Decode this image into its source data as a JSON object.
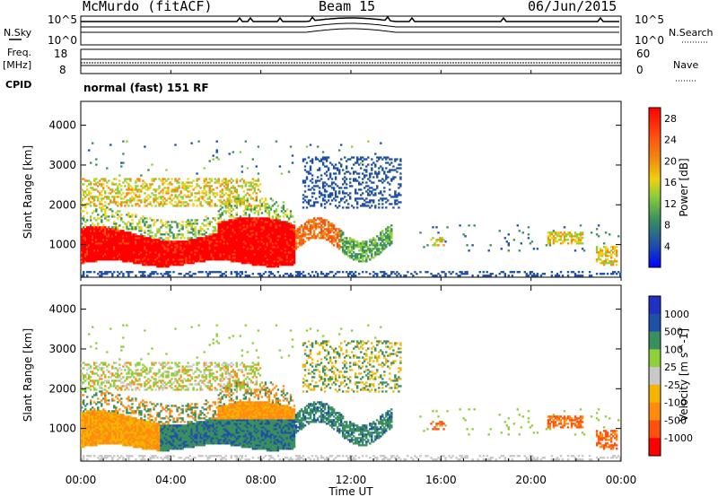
{
  "header": {
    "station": "McMurdo (fitACF)",
    "beam": "Beam 15",
    "date": "06/Jun/2015"
  },
  "side_labels": {
    "nsky": "N.Sky",
    "freq": "Freq.",
    "mhz": "[MHz]",
    "cpid": "CPID",
    "nsearch": "N.Search",
    "nave": "Nave"
  },
  "cpid_text": "normal (fast) 151 RF",
  "colors": {
    "power_scale": [
      "#0000ff",
      "#1f4fa8",
      "#3a8f5e",
      "#8fcf3a",
      "#f0d010",
      "#f08a10",
      "#ff5010",
      "#ff0000"
    ],
    "velocity_scale": [
      "#ff0000",
      "#ff5010",
      "#ff8c10",
      "#f4b400",
      "#c8c8c8",
      "#8fcf3a",
      "#3a8f5e",
      "#1f4fa8",
      "#2030c0"
    ]
  },
  "chart_data": [
    {
      "type": "line",
      "panel": "noise",
      "left_label": "N.Sky",
      "right_label": "N.Search",
      "left_ticks": [
        "10^5",
        "10^0"
      ],
      "right_ticks": [
        "10^5",
        "10^0"
      ]
    },
    {
      "type": "line",
      "panel": "frequency",
      "left_label": "Freq. [MHz]",
      "left_ticks": [
        "18",
        "8"
      ],
      "right_label": "Nave",
      "right_ticks": [
        "60",
        "0"
      ]
    },
    {
      "type": "heatmap",
      "panel": "power",
      "ylabel": "Slant Range [km]",
      "yticks": [
        1000,
        2000,
        3000,
        4000
      ],
      "ylim": [
        180,
        4600
      ],
      "xlim": [
        0,
        24
      ],
      "colorbar_label": "Power [dB]",
      "colorbar_ticks": [
        4,
        8,
        12,
        16,
        20,
        24,
        28
      ],
      "colorbar_range": [
        0,
        30
      ]
    },
    {
      "type": "heatmap",
      "panel": "velocity",
      "ylabel": "Slant Range [km]",
      "yticks": [
        1000,
        2000,
        3000,
        4000
      ],
      "ylim": [
        180,
        4600
      ],
      "xlim": [
        0,
        24
      ],
      "xlabel": "Time UT",
      "xticks": [
        "00:00",
        "04:00",
        "08:00",
        "12:00",
        "16:00",
        "20:00",
        "00:00"
      ],
      "colorbar_label": "Velocity [m s^-1]",
      "colorbar_ticks": [
        "1000",
        "500",
        "100",
        "25",
        "-25",
        "-100",
        "-500",
        "-1000"
      ]
    }
  ]
}
